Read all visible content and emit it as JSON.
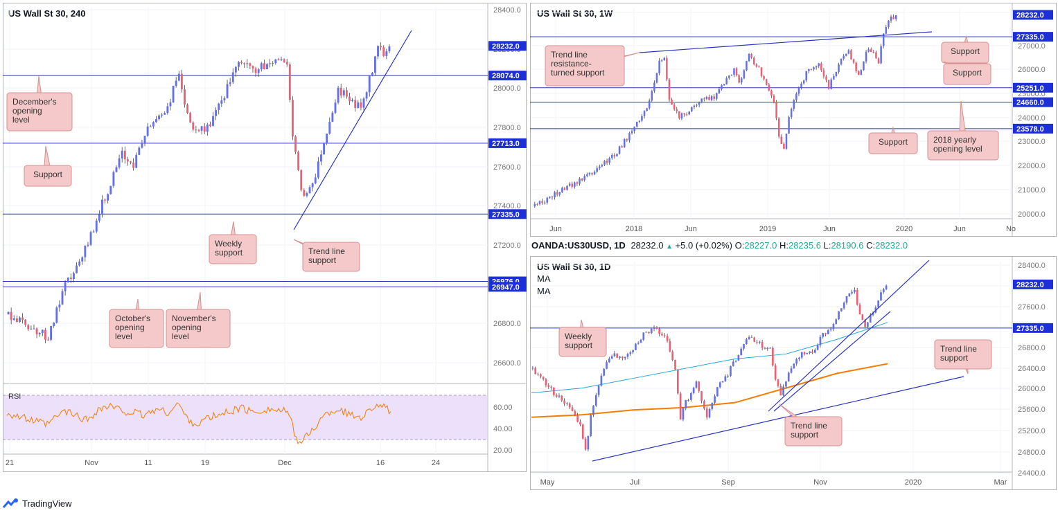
{
  "colors": {
    "up": "#6470e8",
    "down": "#ef5f73",
    "level": "#2a33c4",
    "label_bg": "#1d2fd6",
    "callout_bg": "#f5c9c9",
    "callout_border": "#d49090",
    "rsi": "#f57c00",
    "ma_slow": "#f57c00",
    "ma_fast": "#26a6d9",
    "rsi_band": "#ece0fb",
    "grid": "#f0f3fa"
  },
  "footer": {
    "brand": "TradingView",
    "logo_icon": "tradingview-logo-icon"
  },
  "chart_data": [
    {
      "id": "h4",
      "type": "candlestick",
      "title": "US Wall St 30, 240",
      "ylim": [
        26450,
        28440
      ],
      "y_ticks": [
        "28400.0",
        "28200.0",
        "28000.0",
        "27800.0",
        "27600.0",
        "27400.0",
        "27200.0",
        "27000.0",
        "26800.0",
        "26600.0"
      ],
      "x_ticks": [
        "21",
        "Nov",
        "11",
        "19",
        "Dec",
        "16",
        "24"
      ],
      "last_price": "28232.0",
      "levels": [
        {
          "label": "28074.0",
          "value": 28074
        },
        {
          "label": "27713.0",
          "value": 27713
        },
        {
          "label": "27335.0",
          "value": 27335
        },
        {
          "label": "26976.0",
          "value": 26976
        },
        {
          "label": "26947.0",
          "value": 26947
        }
      ],
      "path": [
        [
          0,
          26800
        ],
        [
          6,
          26750
        ],
        [
          14,
          26680
        ],
        [
          20,
          26950
        ],
        [
          26,
          27100
        ],
        [
          32,
          27350
        ],
        [
          36,
          27500
        ],
        [
          40,
          27650
        ],
        [
          44,
          27600
        ],
        [
          48,
          27760
        ],
        [
          52,
          27850
        ],
        [
          56,
          27900
        ],
        [
          60,
          28100
        ],
        [
          62,
          27900
        ],
        [
          66,
          27760
        ],
        [
          70,
          27800
        ],
        [
          74,
          27900
        ],
        [
          78,
          28050
        ],
        [
          82,
          28150
        ],
        [
          86,
          28100
        ],
        [
          90,
          28120
        ],
        [
          94,
          28160
        ],
        [
          98,
          28150
        ],
        [
          100,
          27750
        ],
        [
          102,
          27550
        ],
        [
          104,
          27420
        ],
        [
          108,
          27550
        ],
        [
          112,
          27780
        ],
        [
          116,
          28000
        ],
        [
          120,
          27950
        ],
        [
          124,
          27900
        ],
        [
          128,
          28100
        ],
        [
          130,
          28250
        ],
        [
          132,
          28200
        ],
        [
          134,
          28232
        ]
      ],
      "rsi": {
        "label": "RSI",
        "ylim": [
          15,
          85
        ],
        "ticks": [
          "60.00",
          "40.00",
          "20.00"
        ],
        "path": [
          [
            0,
            58
          ],
          [
            6,
            52
          ],
          [
            14,
            45
          ],
          [
            20,
            60
          ],
          [
            24,
            55
          ],
          [
            28,
            50
          ],
          [
            32,
            62
          ],
          [
            36,
            65
          ],
          [
            40,
            60
          ],
          [
            44,
            58
          ],
          [
            48,
            55
          ],
          [
            52,
            62
          ],
          [
            56,
            58
          ],
          [
            60,
            68
          ],
          [
            62,
            55
          ],
          [
            66,
            45
          ],
          [
            70,
            52
          ],
          [
            74,
            55
          ],
          [
            78,
            60
          ],
          [
            82,
            63
          ],
          [
            86,
            58
          ],
          [
            90,
            62
          ],
          [
            94,
            61
          ],
          [
            98,
            59
          ],
          [
            100,
            40
          ],
          [
            102,
            25
          ],
          [
            104,
            30
          ],
          [
            108,
            45
          ],
          [
            112,
            58
          ],
          [
            116,
            62
          ],
          [
            120,
            55
          ],
          [
            124,
            54
          ],
          [
            128,
            65
          ],
          [
            130,
            68
          ],
          [
            132,
            62
          ],
          [
            134,
            60
          ]
        ]
      },
      "annotations": [
        {
          "text": "December's opening level"
        },
        {
          "text": "Support"
        },
        {
          "text": "Weekly support"
        },
        {
          "text": "Trend line support"
        },
        {
          "text": "October's opening level"
        },
        {
          "text": "November's opening level"
        }
      ]
    },
    {
      "id": "w1",
      "type": "candlestick",
      "title": "US Wall St 30, 1W",
      "ylim": [
        19950,
        28500
      ],
      "y_ticks": [
        "28000.0",
        "27000.0",
        "26000.0",
        "25000.0",
        "24000.0",
        "23000.0",
        "22000.0",
        "21000.0",
        "20000.0"
      ],
      "x_ticks": [
        "Jun",
        "2018",
        "Jun",
        "2019",
        "Jun",
        "2020",
        "Jun",
        "No"
      ],
      "last_price": "28232.0",
      "levels": [
        {
          "label": "27335.0",
          "value": 27335
        },
        {
          "label": "25251.0",
          "value": 25251
        },
        {
          "label": "24660.0",
          "value": 24660
        },
        {
          "label": "23578.0",
          "value": 23578
        }
      ],
      "path": [
        [
          0,
          20400
        ],
        [
          10,
          21000
        ],
        [
          22,
          21700
        ],
        [
          32,
          22500
        ],
        [
          40,
          23600
        ],
        [
          46,
          24700
        ],
        [
          50,
          26300
        ],
        [
          52,
          26500
        ],
        [
          54,
          24800
        ],
        [
          58,
          24100
        ],
        [
          62,
          24300
        ],
        [
          66,
          24700
        ],
        [
          72,
          24900
        ],
        [
          76,
          25400
        ],
        [
          80,
          26000
        ],
        [
          82,
          25400
        ],
        [
          86,
          26600
        ],
        [
          90,
          26000
        ],
        [
          94,
          25200
        ],
        [
          96,
          24700
        ],
        [
          98,
          23300
        ],
        [
          100,
          22800
        ],
        [
          102,
          24000
        ],
        [
          106,
          25300
        ],
        [
          110,
          26000
        ],
        [
          114,
          26300
        ],
        [
          118,
          25300
        ],
        [
          122,
          26200
        ],
        [
          126,
          26800
        ],
        [
          128,
          26200
        ],
        [
          130,
          25800
        ],
        [
          134,
          26900
        ],
        [
          138,
          26300
        ],
        [
          140,
          27500
        ],
        [
          142,
          28000
        ],
        [
          145,
          28232
        ]
      ],
      "annotations": [
        {
          "text": "Trend line resistance-turned support"
        },
        {
          "text": "Support"
        },
        {
          "text": "Support"
        },
        {
          "text": "Support"
        },
        {
          "text": "2018 yearly opening level"
        }
      ]
    },
    {
      "id": "d1",
      "type": "candlestick",
      "title": "US Wall St 30, 1D",
      "ma_labels": [
        "MA",
        "MA"
      ],
      "ylim": [
        24400,
        28700
      ],
      "y_ticks": [
        "28400.0",
        "28000.0",
        "27600.0",
        "27200.0",
        "26800.0",
        "26400.0",
        "26000.0",
        "25600.0",
        "25200.0",
        "24800.0",
        "24400.0"
      ],
      "x_ticks": [
        "May",
        "Jul",
        "Sep",
        "Nov",
        "2020",
        "Mar"
      ],
      "last_price": "28232.0",
      "levels": [
        {
          "label": "27335.0",
          "value": 27335
        }
      ],
      "path": [
        [
          0,
          26500
        ],
        [
          8,
          26000
        ],
        [
          14,
          25700
        ],
        [
          18,
          25300
        ],
        [
          20,
          24800
        ],
        [
          22,
          25500
        ],
        [
          26,
          26400
        ],
        [
          30,
          26800
        ],
        [
          34,
          26700
        ],
        [
          38,
          26900
        ],
        [
          42,
          27200
        ],
        [
          46,
          27300
        ],
        [
          50,
          27200
        ],
        [
          54,
          26500
        ],
        [
          56,
          25500
        ],
        [
          58,
          25800
        ],
        [
          62,
          26200
        ],
        [
          66,
          25500
        ],
        [
          70,
          26100
        ],
        [
          74,
          26400
        ],
        [
          78,
          26800
        ],
        [
          82,
          27200
        ],
        [
          86,
          27000
        ],
        [
          90,
          26900
        ],
        [
          92,
          26300
        ],
        [
          94,
          26000
        ],
        [
          98,
          26500
        ],
        [
          102,
          26800
        ],
        [
          106,
          26800
        ],
        [
          110,
          27200
        ],
        [
          114,
          27400
        ],
        [
          118,
          27900
        ],
        [
          122,
          28100
        ],
        [
          124,
          27600
        ],
        [
          126,
          27400
        ],
        [
          130,
          27800
        ],
        [
          132,
          28100
        ],
        [
          134,
          28232
        ]
      ],
      "ma_slow": [
        [
          0,
          25500
        ],
        [
          20,
          25550
        ],
        [
          40,
          25650
        ],
        [
          60,
          25700
        ],
        [
          80,
          25800
        ],
        [
          100,
          26100
        ],
        [
          120,
          26400
        ],
        [
          140,
          26600
        ]
      ],
      "ma_fast": [
        [
          0,
          26000
        ],
        [
          20,
          26100
        ],
        [
          40,
          26300
        ],
        [
          60,
          26500
        ],
        [
          80,
          26700
        ],
        [
          100,
          26800
        ],
        [
          120,
          27100
        ],
        [
          140,
          27450
        ]
      ],
      "annotations": [
        {
          "text": "Weekly support"
        },
        {
          "text": "Trend line support"
        },
        {
          "text": "Trend line support"
        }
      ]
    }
  ],
  "info_bar": {
    "symbol": "OANDA:US30USD, 1D",
    "price": "28232.0",
    "change_icon": "up-triangle-icon",
    "change": "+5.0 (+0.02%)",
    "o_label": "O:",
    "o": "28227.0",
    "h_label": "H:",
    "h": "28235.6",
    "l_label": "L:",
    "l": "28190.6",
    "c_label": "C:",
    "c": "28232.0"
  }
}
